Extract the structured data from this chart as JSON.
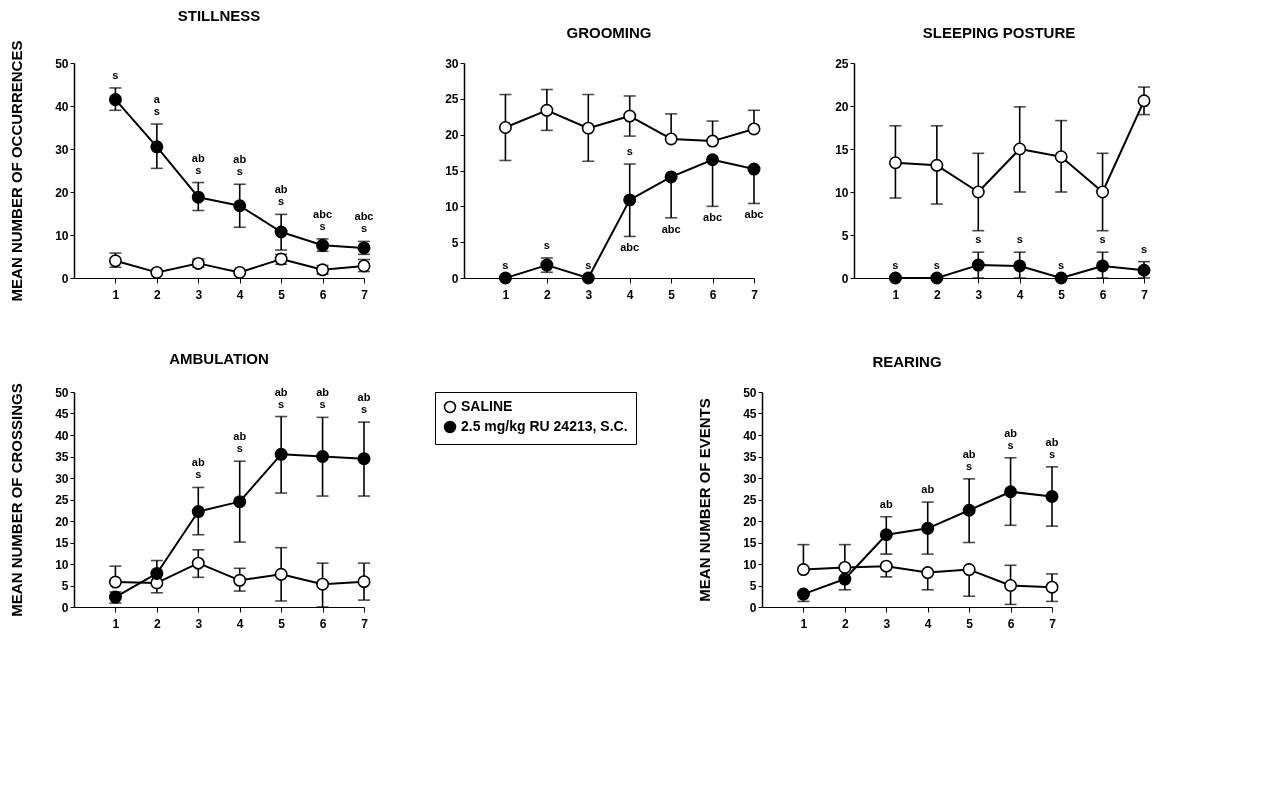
{
  "chart_data": [
    {
      "type": "line",
      "title": "STILLNESS",
      "ylabel": "MEAN NUMBER OF OCCURRENCES",
      "x": [
        1,
        2,
        3,
        4,
        5,
        6,
        7
      ],
      "xlim": [
        0,
        7
      ],
      "xticks": [
        1,
        2,
        3,
        4,
        5,
        6,
        7
      ],
      "ylim": [
        0,
        50
      ],
      "yticks": [
        0,
        10,
        20,
        30,
        40,
        50
      ],
      "marker": "circle",
      "series": [
        {
          "color": "#ffffff",
          "values": [
            4,
            1.3,
            3.4,
            1.3,
            4.4,
            1.9,
            2.8
          ],
          "errors": [
            [
              2.5,
              5.8
            ],
            null,
            [
              2.5,
              4.4
            ],
            null,
            [
              3.2,
              5.5
            ],
            [
              0.9,
              2.9
            ],
            [
              1.5,
              4.3
            ]
          ]
        },
        {
          "color": "#000000",
          "values": [
            41.5,
            30.5,
            18.8,
            16.8,
            10.7,
            7.6,
            7
          ],
          "errors": [
            [
              39,
              44.2
            ],
            [
              25.5,
              35.8
            ],
            [
              15.7,
              22.2
            ],
            [
              11.8,
              21.8
            ],
            [
              6.5,
              14.8
            ],
            [
              6.2,
              9.1
            ],
            [
              5.5,
              8.5
            ]
          ]
        }
      ],
      "annotations": [
        {
          "text": "s",
          "x": 1,
          "y": 44.2
        },
        {
          "text": "a\ns",
          "x": 2,
          "y": 35.8
        },
        {
          "text": "ab\ns",
          "x": 3,
          "y": 22.2
        },
        {
          "text": "ab\ns",
          "x": 4,
          "y": 21.8
        },
        {
          "text": "ab\ns",
          "x": 5,
          "y": 14.8
        },
        {
          "text": "abc\ns",
          "x": 6,
          "y": 9.1
        },
        {
          "text": "abc\ns",
          "x": 7,
          "y": 8.5
        }
      ]
    },
    {
      "type": "line",
      "title": "GROOMING",
      "x": [
        1,
        2,
        3,
        4,
        5,
        6,
        7
      ],
      "xlim": [
        0,
        7
      ],
      "xticks": [
        1,
        2,
        3,
        4,
        5,
        6,
        7
      ],
      "ylim": [
        0,
        30
      ],
      "yticks": [
        0,
        5,
        10,
        15,
        20,
        25,
        30
      ],
      "marker": "circle",
      "series": [
        {
          "color": "#ffffff",
          "values": [
            21,
            23.4,
            20.9,
            22.6,
            19.4,
            19.1,
            20.8
          ],
          "errors": [
            [
              16.4,
              25.6
            ],
            [
              20.6,
              26.3
            ],
            [
              16.3,
              25.6
            ],
            [
              19.8,
              25.4
            ],
            [
              19.4,
              22.9
            ],
            [
              19.1,
              21.9
            ],
            [
              20.8,
              23.4
            ]
          ]
        },
        {
          "color": "#000000",
          "values": [
            0,
            1.8,
            0,
            10.9,
            14.1,
            16.5,
            15.2
          ],
          "errors": [
            null,
            [
              0.8,
              2.8
            ],
            null,
            [
              5.8,
              15.9
            ],
            [
              8.4,
              14.1
            ],
            [
              10,
              16.5
            ],
            [
              10.4,
              15.2
            ]
          ]
        }
      ],
      "annotations": [
        {
          "text": "s",
          "x": 1,
          "y": 0
        },
        {
          "text": "s",
          "x": 2,
          "y": 2.8
        },
        {
          "text": "s",
          "x": 3,
          "y": 0
        },
        {
          "text": "s",
          "x": 4,
          "y": 15.9
        },
        {
          "text": "abc",
          "x": 4,
          "y": 5.8
        },
        {
          "text": "abc",
          "x": 5,
          "y": 8.4
        },
        {
          "text": "abc",
          "x": 6,
          "y": 10
        },
        {
          "text": "abc",
          "x": 7,
          "y": 10.4
        }
      ]
    },
    {
      "type": "line",
      "title": "SLEEPING POSTURE",
      "x": [
        1,
        2,
        3,
        4,
        5,
        6,
        7
      ],
      "xlim": [
        0,
        7
      ],
      "xticks": [
        1,
        2,
        3,
        4,
        5,
        6,
        7
      ],
      "ylim": [
        0,
        25
      ],
      "yticks": [
        0,
        5,
        10,
        15,
        20,
        25
      ],
      "marker": "circle",
      "series": [
        {
          "color": "#ffffff",
          "values": [
            13.4,
            13.1,
            10,
            15,
            14.1,
            10,
            20.6
          ],
          "errors": [
            [
              9.3,
              17.7
            ],
            [
              8.6,
              17.7
            ],
            [
              5.5,
              14.5
            ],
            [
              10,
              19.9
            ],
            [
              10,
              18.3
            ],
            [
              5.5,
              14.5
            ],
            [
              19,
              22.2
            ]
          ]
        },
        {
          "color": "#000000",
          "values": [
            0,
            0,
            1.5,
            1.4,
            0,
            1.4,
            0.9
          ],
          "errors": [
            null,
            null,
            [
              0,
              3
            ],
            [
              0,
              3
            ],
            null,
            [
              0,
              3
            ],
            [
              0,
              1.9
            ]
          ]
        }
      ],
      "annotations": [
        {
          "text": "s",
          "x": 1,
          "y": 0
        },
        {
          "text": "s",
          "x": 2,
          "y": 0
        },
        {
          "text": "s",
          "x": 3,
          "y": 3
        },
        {
          "text": "s",
          "x": 4,
          "y": 3
        },
        {
          "text": "s",
          "x": 5,
          "y": 0
        },
        {
          "text": "s",
          "x": 6,
          "y": 3
        },
        {
          "text": "s",
          "x": 7,
          "y": 1.9
        }
      ]
    },
    {
      "type": "line",
      "title": "AMBULATION",
      "ylabel": "MEAN NUMBER OF CROSSINGS",
      "x": [
        1,
        2,
        3,
        4,
        5,
        6,
        7
      ],
      "xlim": [
        0,
        7
      ],
      "xticks": [
        1,
        2,
        3,
        4,
        5,
        6,
        7
      ],
      "ylim": [
        0,
        50
      ],
      "yticks": [
        0,
        5,
        10,
        15,
        20,
        25,
        30,
        35,
        40,
        45,
        50
      ],
      "marker": "circle",
      "legend": "right",
      "series": [
        {
          "name": "SALINE",
          "color": "#ffffff",
          "values": [
            5.8,
            5.6,
            10.2,
            6.2,
            7.6,
            5.3,
            5.9
          ],
          "errors": [
            [
              5.8,
              9.5
            ],
            [
              3.3,
              5.6
            ],
            [
              6.9,
              13.3
            ],
            [
              3.7,
              9
            ],
            [
              1.4,
              13.8
            ],
            [
              0,
              10.2
            ],
            [
              1.6,
              10.2
            ]
          ]
        },
        {
          "name": "2.5 mg/kg RU 24213, S.C.",
          "color": "#000000",
          "values": [
            2.3,
            7.8,
            22.2,
            24.5,
            35.5,
            35,
            34.5
          ],
          "errors": [
            [
              0.9,
              3.5
            ],
            [
              5,
              10.8
            ],
            [
              16.8,
              27.8
            ],
            [
              15.1,
              33.9
            ],
            [
              26.5,
              44.3
            ],
            [
              25.8,
              44.1
            ],
            [
              25.8,
              43
            ]
          ]
        }
      ],
      "annotations": [
        {
          "text": "ab\ns",
          "x": 3,
          "y": 27.8
        },
        {
          "text": "ab\ns",
          "x": 4,
          "y": 33.9
        },
        {
          "text": "ab\ns",
          "x": 5,
          "y": 44.3
        },
        {
          "text": "ab\ns",
          "x": 6,
          "y": 44.1
        },
        {
          "text": "ab\ns",
          "x": 7,
          "y": 43
        }
      ]
    },
    {
      "type": "line",
      "title": "REARING",
      "ylabel": "MEAN NUMBER OF EVENTS",
      "x": [
        1,
        2,
        3,
        4,
        5,
        6,
        7
      ],
      "xlim": [
        0,
        7
      ],
      "xticks": [
        1,
        2,
        3,
        4,
        5,
        6,
        7
      ],
      "ylim": [
        0,
        50
      ],
      "yticks": [
        0,
        5,
        10,
        15,
        20,
        25,
        30,
        35,
        40,
        45,
        50
      ],
      "marker": "circle",
      "series": [
        {
          "color": "#ffffff",
          "values": [
            8.7,
            9.2,
            9.5,
            8,
            8.7,
            5,
            4.6
          ],
          "errors": [
            [
              8.7,
              14.5
            ],
            [
              9.2,
              14.5
            ],
            [
              7,
              9.5
            ],
            [
              4,
              8
            ],
            [
              2.5,
              8.7
            ],
            [
              0.6,
              9.7
            ],
            [
              1.3,
              7.7
            ]
          ]
        },
        {
          "color": "#000000",
          "values": [
            3,
            6.5,
            16.8,
            18.3,
            22.5,
            26.8,
            25.7
          ],
          "errors": [
            [
              1.3,
              3
            ],
            [
              4,
              6.5
            ],
            [
              12.3,
              21
            ],
            [
              12.3,
              24.4
            ],
            [
              15,
              29.8
            ],
            [
              19,
              34.7
            ],
            [
              18.8,
              32.6
            ]
          ]
        }
      ],
      "annotations": [
        {
          "text": "ab",
          "x": 3,
          "y": 21
        },
        {
          "text": "ab",
          "x": 4,
          "y": 24.4
        },
        {
          "text": "ab\ns",
          "x": 5,
          "y": 29.8
        },
        {
          "text": "ab\ns",
          "x": 6,
          "y": 34.7
        },
        {
          "text": "ab\ns",
          "x": 7,
          "y": 32.6
        }
      ]
    }
  ]
}
